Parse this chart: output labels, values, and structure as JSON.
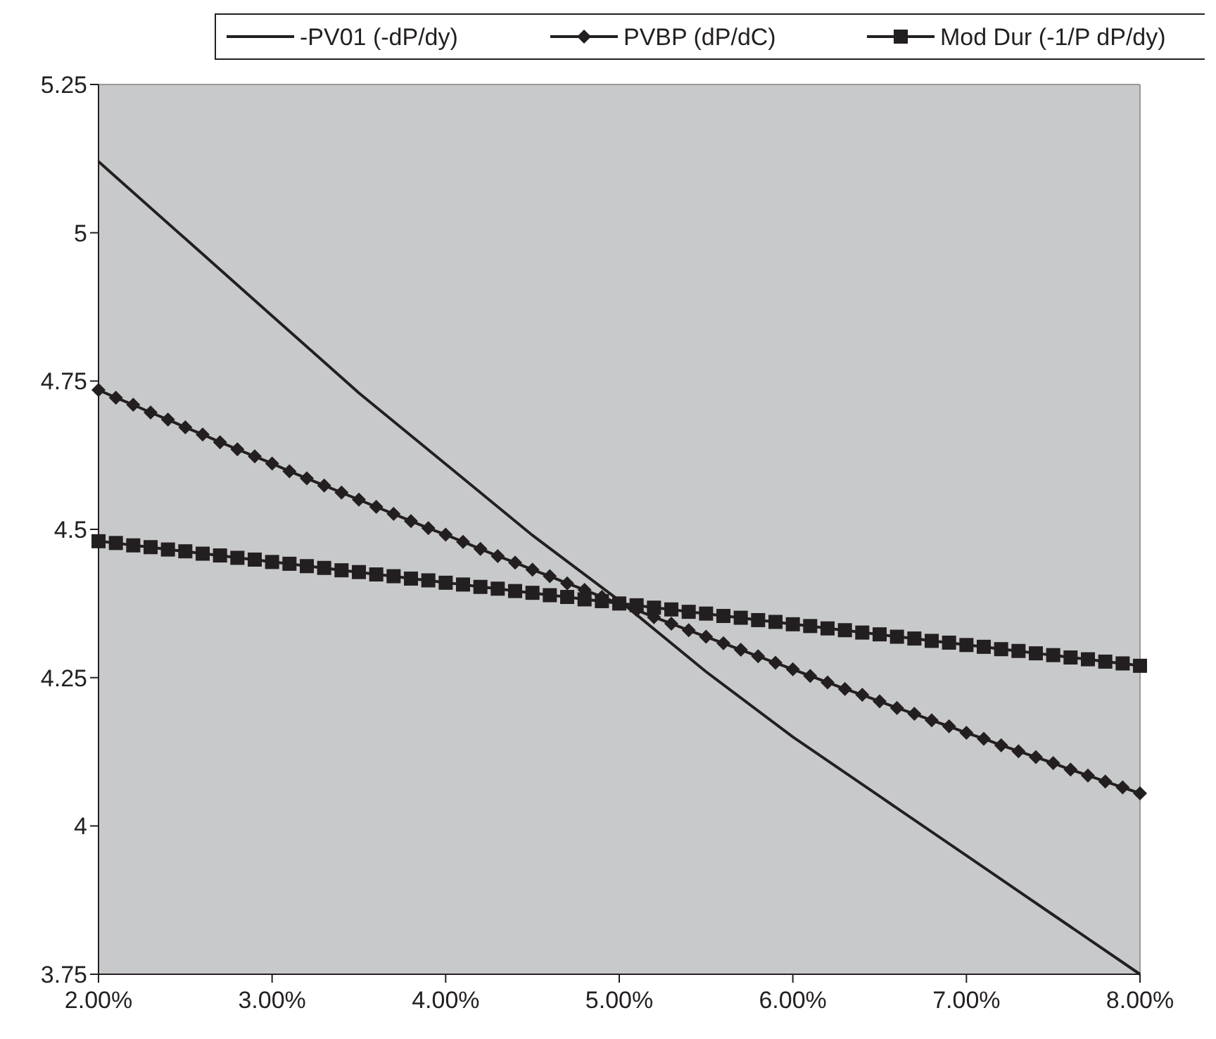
{
  "chart_data": {
    "type": "line",
    "legend": "top",
    "grid": false,
    "xlim": [
      2,
      8
    ],
    "ylim": [
      3.75,
      5.25
    ],
    "xticks": [
      {
        "value": 2,
        "label": "2.00%"
      },
      {
        "value": 3,
        "label": "3.00%"
      },
      {
        "value": 4,
        "label": "4.00%"
      },
      {
        "value": 5,
        "label": "5.00%"
      },
      {
        "value": 6,
        "label": "6.00%"
      },
      {
        "value": 7,
        "label": "7.00%"
      },
      {
        "value": 8,
        "label": "8.00%"
      }
    ],
    "yticks": [
      3.75,
      4,
      4.25,
      4.5,
      4.75,
      5,
      5.25
    ],
    "x": [
      2,
      2.1,
      2.2,
      2.3,
      2.4,
      2.5,
      2.6,
      2.7,
      2.8,
      2.9,
      3,
      3.1,
      3.2,
      3.3,
      3.4,
      3.5,
      3.6,
      3.7,
      3.8,
      3.9,
      4,
      4.1,
      4.2,
      4.3,
      4.4,
      4.5,
      4.6,
      4.7,
      4.8,
      4.9,
      5,
      5.1,
      5.2,
      5.3,
      5.4,
      5.5,
      5.6,
      5.7,
      5.8,
      5.9,
      6,
      6.1,
      6.2,
      6.3,
      6.4,
      6.5,
      6.6,
      6.7,
      6.8,
      6.9,
      7,
      7.1,
      7.2,
      7.3,
      7.4,
      7.5,
      7.6,
      7.7,
      7.8,
      7.9,
      8
    ],
    "series": [
      {
        "name": "-PV01 (-dP/dy)",
        "color": "#231f20",
        "marker": "none",
        "x": [
          2,
          2.5,
          3,
          3.5,
          4,
          4.5,
          5,
          5.5,
          6,
          6.5,
          7,
          7.5,
          8
        ],
        "values": [
          5.12,
          4.99,
          4.86,
          4.73,
          4.61,
          4.49,
          4.38,
          4.26,
          4.15,
          4.05,
          3.95,
          3.85,
          3.75
        ]
      },
      {
        "name": "PVBP (dP/dC)",
        "color": "#231f20",
        "marker": "diamond",
        "values": [
          4.735,
          4.722,
          4.71,
          4.697,
          4.685,
          4.672,
          4.66,
          4.647,
          4.635,
          4.623,
          4.611,
          4.598,
          4.586,
          4.574,
          4.562,
          4.55,
          4.538,
          4.526,
          4.514,
          4.502,
          4.491,
          4.479,
          4.467,
          4.455,
          4.444,
          4.432,
          4.421,
          4.409,
          4.398,
          4.386,
          4.375,
          4.364,
          4.352,
          4.341,
          4.33,
          4.319,
          4.308,
          4.297,
          4.286,
          4.275,
          4.264,
          4.253,
          4.242,
          4.231,
          4.221,
          4.21,
          4.199,
          4.189,
          4.178,
          4.168,
          4.157,
          4.147,
          4.136,
          4.126,
          4.116,
          4.106,
          4.095,
          4.085,
          4.075,
          4.065,
          4.055
        ]
      },
      {
        "name": "Mod Dur (-1/P dP/dy)",
        "color": "#231f20",
        "marker": "square",
        "values": [
          4.48,
          4.477,
          4.473,
          4.47,
          4.466,
          4.463,
          4.459,
          4.456,
          4.452,
          4.449,
          4.445,
          4.442,
          4.438,
          4.435,
          4.431,
          4.428,
          4.424,
          4.421,
          4.417,
          4.414,
          4.41,
          4.407,
          4.403,
          4.4,
          4.396,
          4.393,
          4.389,
          4.386,
          4.382,
          4.379,
          4.375,
          4.372,
          4.368,
          4.365,
          4.361,
          4.358,
          4.354,
          4.351,
          4.347,
          4.344,
          4.34,
          4.337,
          4.333,
          4.33,
          4.326,
          4.323,
          4.319,
          4.316,
          4.312,
          4.309,
          4.305,
          4.302,
          4.298,
          4.295,
          4.291,
          4.288,
          4.284,
          4.281,
          4.277,
          4.274,
          4.27
        ]
      }
    ]
  }
}
